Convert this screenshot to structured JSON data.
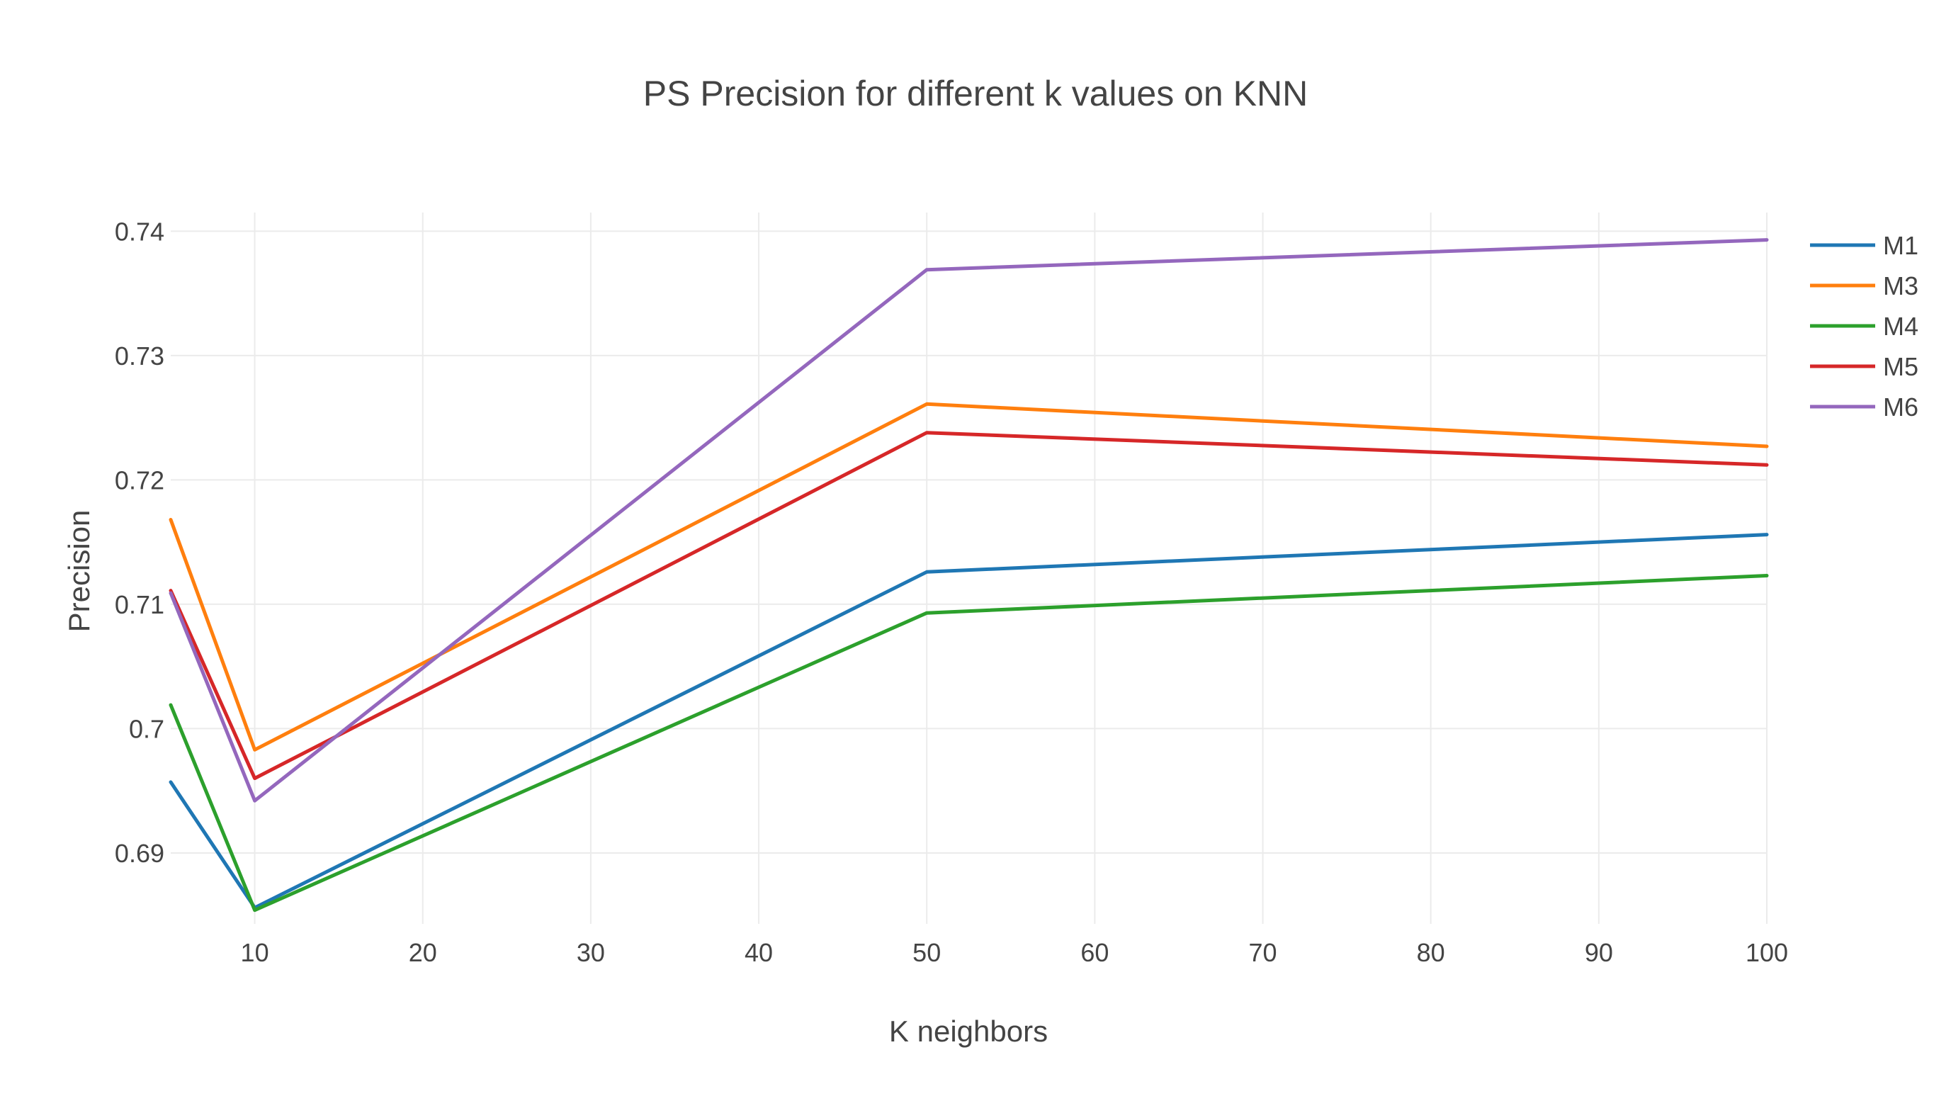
{
  "chart_data": {
    "type": "line",
    "title": "PS Precision for different k values on KNN",
    "xlabel": "K neighbors",
    "ylabel": "Precision",
    "x": [
      5,
      10,
      50,
      100
    ],
    "xlim": [
      5,
      100
    ],
    "ylim": [
      0.6843,
      0.7415
    ],
    "x_ticks": [
      10,
      20,
      30,
      40,
      50,
      60,
      70,
      80,
      90,
      100
    ],
    "x_tick_labels": [
      "10",
      "20",
      "30",
      "40",
      "50",
      "60",
      "70",
      "80",
      "90",
      "100"
    ],
    "y_ticks": [
      0.69,
      0.7,
      0.71,
      0.72,
      0.73,
      0.74
    ],
    "y_tick_labels": [
      "0.69",
      "0.7",
      "0.71",
      "0.72",
      "0.73",
      "0.74"
    ],
    "grid": true,
    "legend_position": "top-right",
    "series": [
      {
        "name": "M1",
        "color": "#1f77b4",
        "values": [
          0.6957,
          0.6856,
          0.7126,
          0.7156
        ]
      },
      {
        "name": "M3",
        "color": "#ff7f0e",
        "values": [
          0.7168,
          0.6983,
          0.7261,
          0.7227
        ]
      },
      {
        "name": "M4",
        "color": "#2ca02c",
        "values": [
          0.7019,
          0.6854,
          0.7093,
          0.7123
        ]
      },
      {
        "name": "M5",
        "color": "#d62728",
        "values": [
          0.7111,
          0.696,
          0.7238,
          0.7212
        ]
      },
      {
        "name": "M6",
        "color": "#9467bd",
        "values": [
          0.7109,
          0.6942,
          0.7369,
          0.7393
        ]
      }
    ]
  }
}
